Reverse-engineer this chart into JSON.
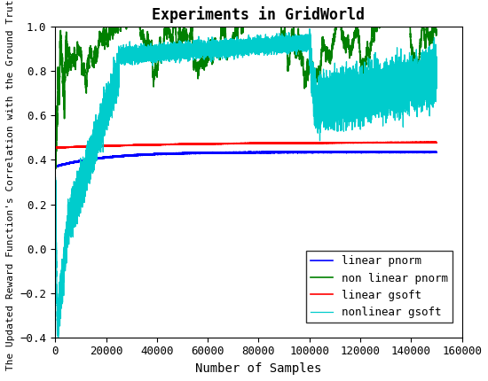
{
  "title": "Experiments in GridWorld",
  "xlabel": "Number of Samples",
  "ylabel": "The Updated Reward Function's Correlation with the Ground Truth",
  "xlim": [
    0,
    160000
  ],
  "ylim": [
    -0.4,
    1.0
  ],
  "xticks": [
    0,
    20000,
    40000,
    60000,
    80000,
    100000,
    120000,
    140000,
    160000
  ],
  "yticks": [
    -0.4,
    -0.2,
    0.0,
    0.2,
    0.4,
    0.6,
    0.8,
    1.0
  ],
  "legend_labels": [
    "linear pnorm",
    "non linear pnorm",
    "linear gsoft",
    "nonlinear gsoft"
  ],
  "colors": {
    "linear_pnorm": "#0000ff",
    "non_linear_pnorm": "#008000",
    "linear_gsoft": "#ff0000",
    "nonlinear_gsoft": "#00cccc"
  },
  "n_samples": 150000,
  "seed": 42
}
